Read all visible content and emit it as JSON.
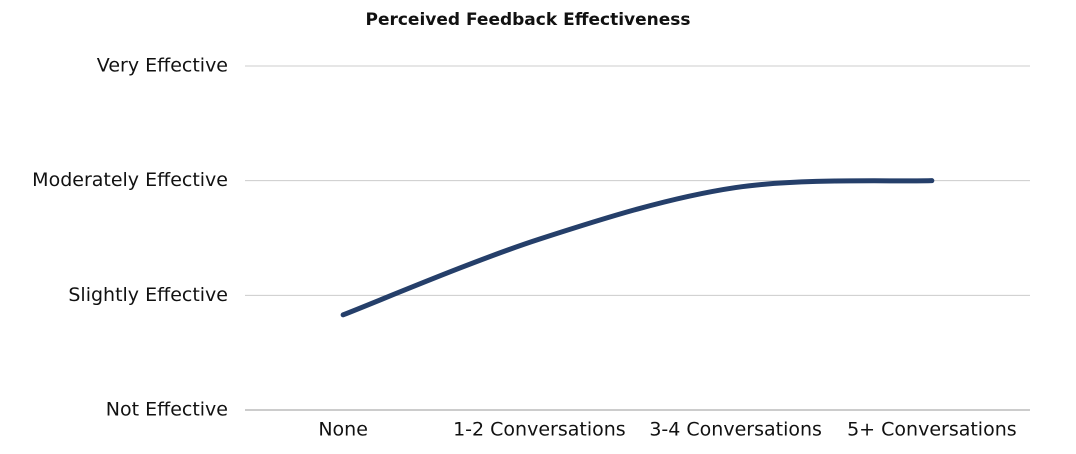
{
  "chart_data": {
    "type": "line",
    "title": "Perceived Feedback Effectiveness",
    "categories": [
      "None",
      "1-2 Conversations",
      "3-4 Conversations",
      "5+ Conversations"
    ],
    "values": [
      1.83,
      2.49,
      2.94,
      3.0
    ],
    "color": "#253f6a",
    "ylim": [
      1,
      4
    ],
    "yticks": [
      {
        "value": 1,
        "label": "Not Effective"
      },
      {
        "value": 2,
        "label": "Slightly Effective"
      },
      {
        "value": 3,
        "label": "Moderately Effective"
      },
      {
        "value": 4,
        "label": "Very Effective"
      }
    ],
    "grid": true
  }
}
